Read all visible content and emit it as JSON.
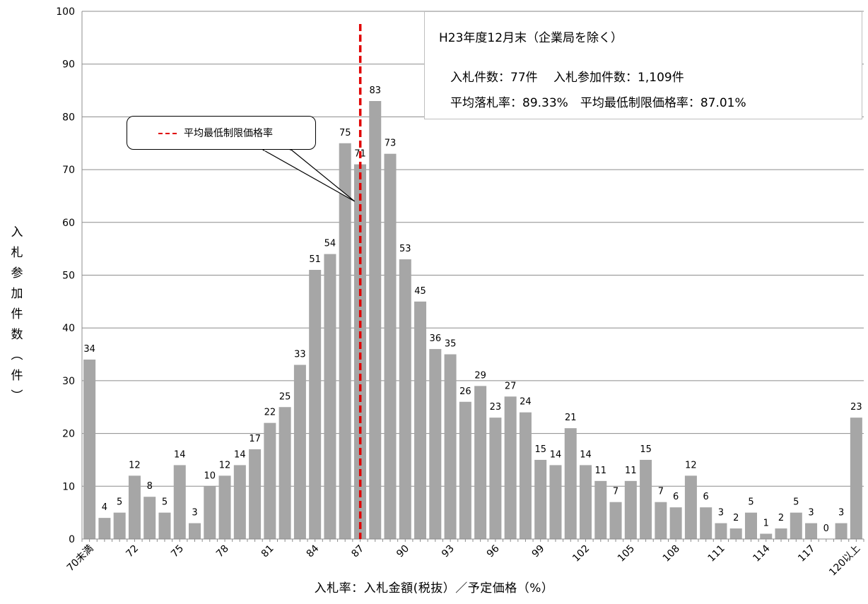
{
  "chart_data": {
    "type": "bar",
    "title": "",
    "xlabel": "入札率：入札金額(税抜）／予定価格（%）",
    "ylabel": "入札参加件数（件）",
    "ylim": [
      0,
      100
    ],
    "yticks": [
      0,
      10,
      20,
      30,
      40,
      50,
      60,
      70,
      80,
      90,
      100
    ],
    "grid": true,
    "bar_color": "#a6a6a6",
    "categories": [
      "70未満",
      "70",
      "71",
      "72",
      "73",
      "74",
      "75",
      "76",
      "77",
      "78",
      "79",
      "80",
      "81",
      "82",
      "83",
      "84",
      "85",
      "86",
      "87",
      "88",
      "89",
      "90",
      "91",
      "92",
      "93",
      "94",
      "95",
      "96",
      "97",
      "98",
      "99",
      "100",
      "101",
      "102",
      "103",
      "104",
      "105",
      "106",
      "107",
      "108",
      "109",
      "110",
      "111",
      "112",
      "113",
      "114",
      "115",
      "116",
      "117",
      "118",
      "119",
      "120以上"
    ],
    "values": [
      34,
      4,
      5,
      12,
      8,
      5,
      14,
      3,
      10,
      12,
      14,
      17,
      22,
      25,
      33,
      51,
      54,
      75,
      71,
      83,
      73,
      53,
      45,
      36,
      35,
      26,
      29,
      23,
      27,
      24,
      15,
      14,
      21,
      14,
      11,
      7,
      11,
      15,
      7,
      6,
      12,
      6,
      3,
      2,
      5,
      1,
      2,
      5,
      3,
      0,
      3,
      23
    ],
    "tick_labels": [
      {
        "index": 0,
        "text": "70未満"
      },
      {
        "index": 3,
        "text": "72"
      },
      {
        "index": 6,
        "text": "75"
      },
      {
        "index": 9,
        "text": "78"
      },
      {
        "index": 12,
        "text": "81"
      },
      {
        "index": 15,
        "text": "84"
      },
      {
        "index": 18,
        "text": "87"
      },
      {
        "index": 21,
        "text": "90"
      },
      {
        "index": 24,
        "text": "93"
      },
      {
        "index": 27,
        "text": "96"
      },
      {
        "index": 30,
        "text": "99"
      },
      {
        "index": 33,
        "text": "102"
      },
      {
        "index": 36,
        "text": "105"
      },
      {
        "index": 39,
        "text": "108"
      },
      {
        "index": 42,
        "text": "111"
      },
      {
        "index": 45,
        "text": "114"
      },
      {
        "index": 48,
        "text": "117"
      },
      {
        "index": 51,
        "text": "120以上"
      }
    ],
    "reference_line": {
      "label": "平均最低制限価格率",
      "value": 87.01,
      "color": "#e00000",
      "style": "dashed"
    },
    "info_box": {
      "title": "H23年度12月末（企業局を除く）",
      "line1": "入札件数：77件　 入札参加件数：1,109件",
      "line2": "平均落札率：89.33%　平均最低制限価格率：87.01%"
    }
  }
}
